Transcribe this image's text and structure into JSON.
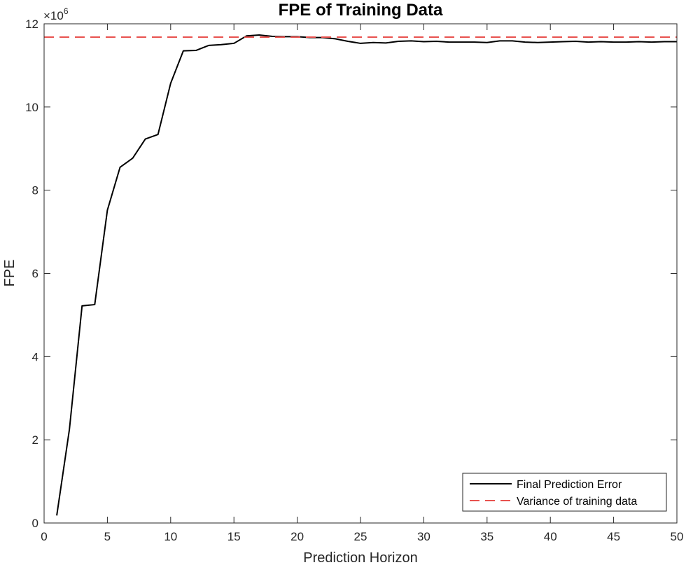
{
  "chart_data": {
    "type": "line",
    "title": "FPE of Training Data",
    "xlabel": "Prediction Horizon",
    "ylabel": "FPE",
    "y_multiplier": "×10",
    "y_multiplier_exponent": "6",
    "xlim": [
      0,
      50
    ],
    "ylim": [
      0,
      12000000
    ],
    "xticks": [
      0,
      5,
      10,
      15,
      20,
      25,
      30,
      35,
      40,
      45,
      50
    ],
    "yticks": [
      0,
      2000000,
      4000000,
      6000000,
      8000000,
      10000000,
      12000000
    ],
    "ytick_labels": [
      "0",
      "2",
      "4",
      "6",
      "8",
      "10",
      "12"
    ],
    "grid": false,
    "legend_position": "bottom-right",
    "series": [
      {
        "name": "Final Prediction Error",
        "color": "#000000",
        "style": "solid",
        "x": [
          1,
          2,
          3,
          4,
          5,
          6,
          7,
          8,
          9,
          10,
          11,
          12,
          13,
          14,
          15,
          16,
          17,
          18,
          19,
          20,
          21,
          22,
          23,
          24,
          25,
          26,
          27,
          28,
          29,
          30,
          31,
          32,
          33,
          34,
          35,
          36,
          37,
          38,
          39,
          40,
          41,
          42,
          43,
          44,
          45,
          46,
          47,
          48,
          49,
          50
        ],
        "y": [
          180000,
          2250000,
          5220000,
          5250000,
          7520000,
          8550000,
          8770000,
          9230000,
          9340000,
          10570000,
          11350000,
          11360000,
          11480000,
          11500000,
          11530000,
          11710000,
          11730000,
          11700000,
          11690000,
          11690000,
          11670000,
          11670000,
          11640000,
          11580000,
          11530000,
          11550000,
          11540000,
          11580000,
          11590000,
          11570000,
          11580000,
          11560000,
          11560000,
          11560000,
          11550000,
          11590000,
          11590000,
          11560000,
          11550000,
          11560000,
          11570000,
          11580000,
          11560000,
          11570000,
          11560000,
          11560000,
          11570000,
          11560000,
          11570000,
          11570000
        ]
      },
      {
        "name": "Variance of training data",
        "color": "#e8524f",
        "style": "dashed",
        "x": [
          0,
          50
        ],
        "y": [
          11680000,
          11680000
        ]
      }
    ]
  }
}
